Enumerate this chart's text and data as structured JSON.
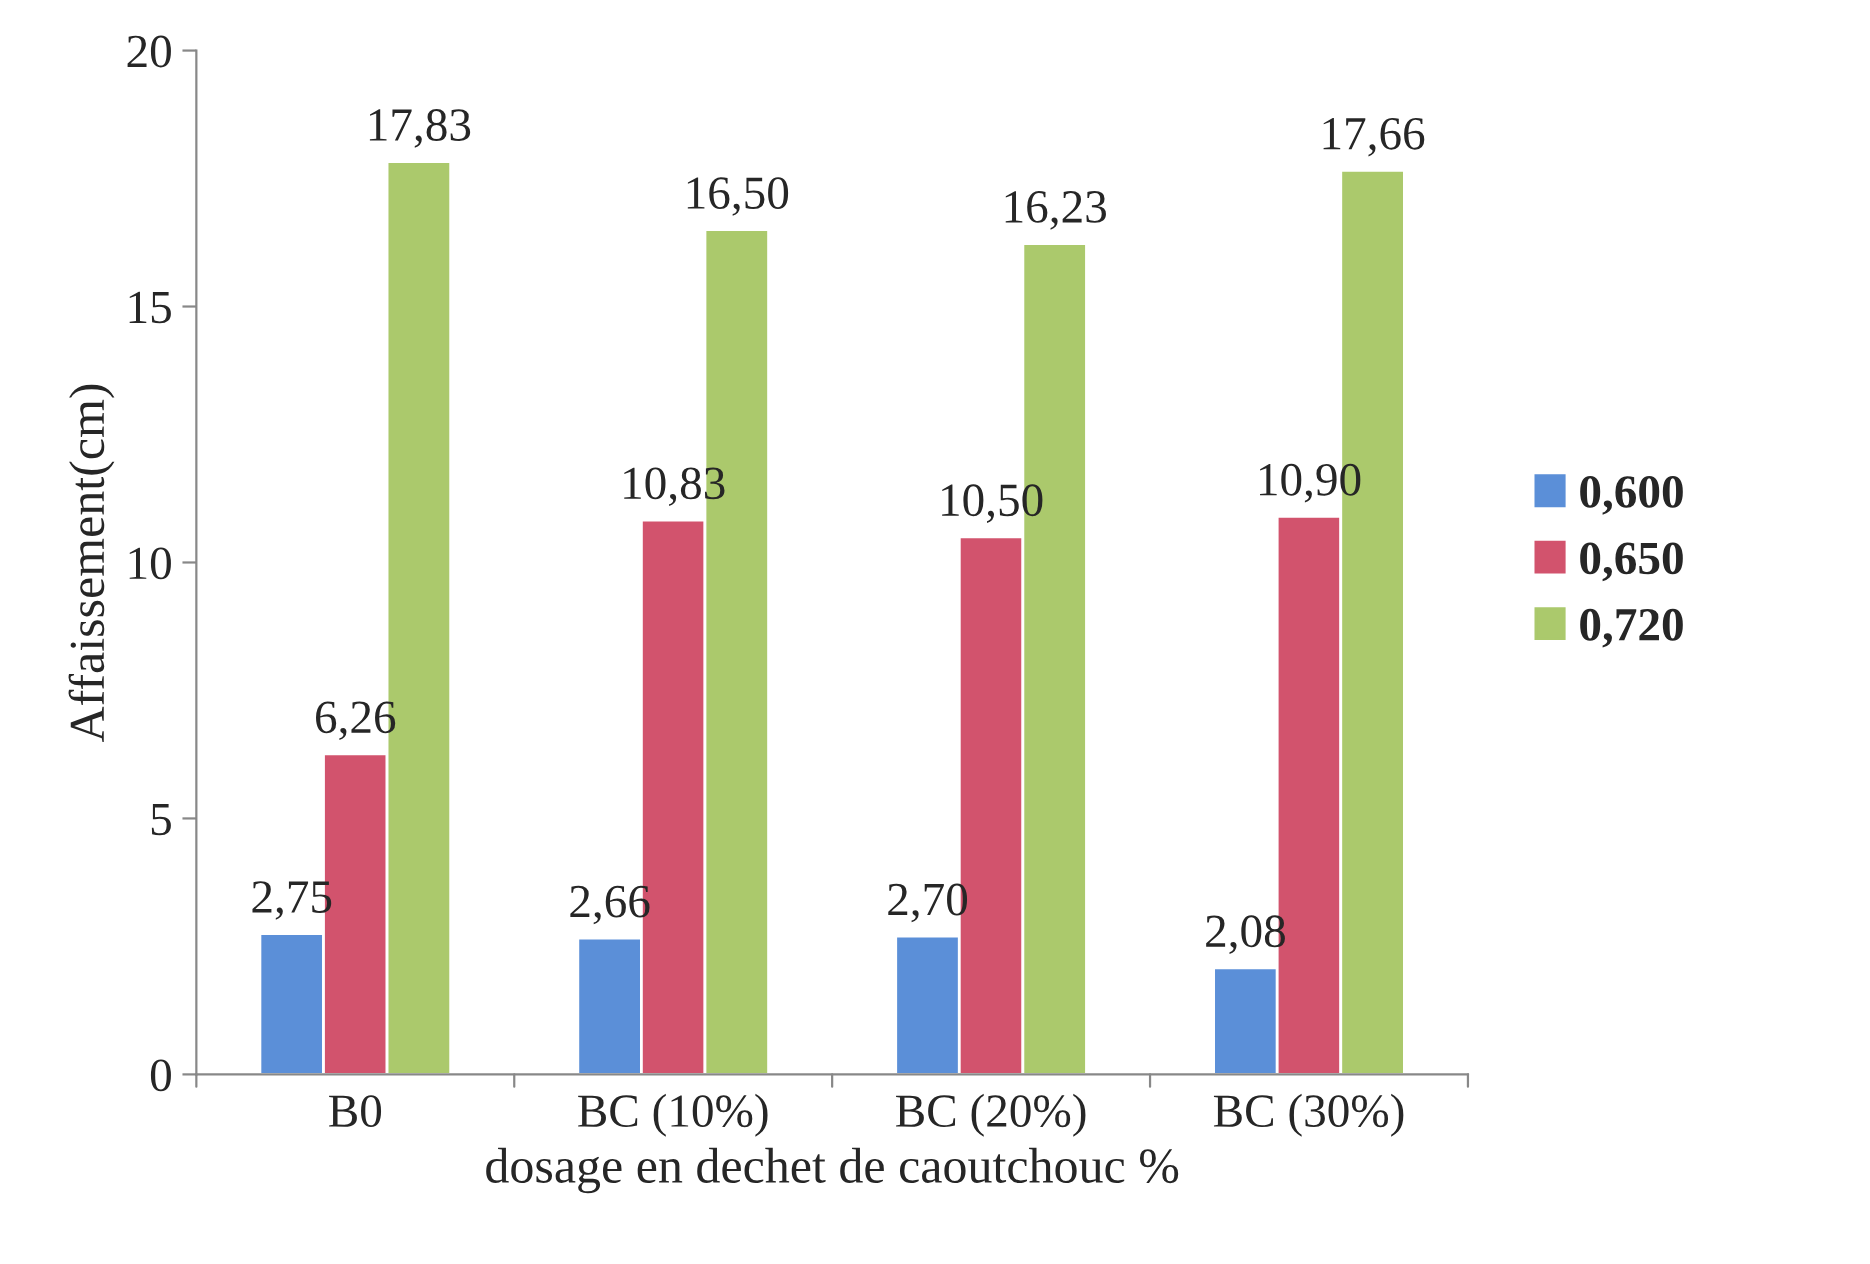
{
  "chart_data": {
    "type": "bar",
    "xlabel": "dosage en dechet de caoutchouc %",
    "ylabel": "Affaissement(cm)",
    "categories": [
      "B0",
      "BC (10%)",
      "BC (20%)",
      "BC (30%)"
    ],
    "series": [
      {
        "name": "0,600",
        "color": "#5b8fd8",
        "values": [
          2.75,
          2.66,
          2.7,
          2.08
        ],
        "value_labels": [
          "2,75",
          "2,66",
          "2,70",
          "2,08"
        ]
      },
      {
        "name": "0,650",
        "color": "#d2536d",
        "values": [
          6.26,
          10.83,
          10.5,
          10.9
        ],
        "value_labels": [
          "6,26",
          "10,83",
          "10,50",
          "10,90"
        ]
      },
      {
        "name": "0,720",
        "color": "#abc96c",
        "values": [
          17.83,
          16.5,
          16.23,
          17.66
        ],
        "value_labels": [
          "17,83",
          "16,50",
          "16,23",
          "17,66"
        ]
      }
    ],
    "ylim": [
      0,
      20
    ],
    "yticks": [
      0,
      5,
      10,
      15,
      20
    ],
    "grid": false,
    "legend": "right"
  }
}
